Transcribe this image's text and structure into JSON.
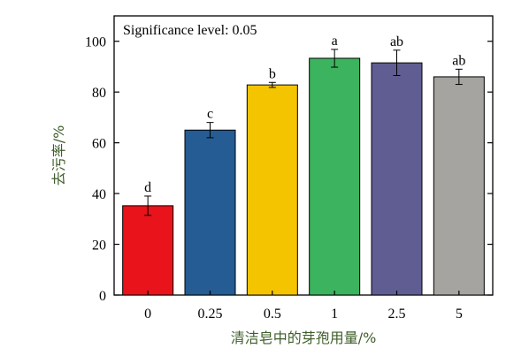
{
  "chart_data": {
    "type": "bar",
    "annotation": "Significance level: 0.05",
    "xlabel": "清洁皂中的芽孢用量/%",
    "ylabel": "去污率/%",
    "ylim": [
      0,
      110
    ],
    "yticks": [
      0,
      20,
      40,
      60,
      80,
      100
    ],
    "categories": [
      "0",
      "0.25",
      "0.5",
      "1",
      "2.5",
      "5"
    ],
    "values": [
      35.2,
      65.0,
      82.8,
      93.3,
      91.5,
      86.0
    ],
    "errors": [
      3.8,
      3.0,
      1.0,
      3.5,
      5.0,
      3.0
    ],
    "significance_letters": [
      "d",
      "c",
      "b",
      "a",
      "ab",
      "ab"
    ],
    "colors": [
      "#e8131b",
      "#255c93",
      "#f5c400",
      "#3cb35e",
      "#605d93",
      "#a5a4a0"
    ],
    "axis_label_color": "#3f5e2a",
    "grid": false
  }
}
